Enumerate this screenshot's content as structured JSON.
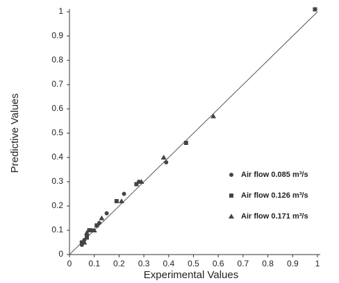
{
  "chart_data": {
    "type": "scatter",
    "x_label": "Experimental Values",
    "y_label": "Predictive Values",
    "xlim": [
      0,
      1
    ],
    "ylim": [
      0,
      1
    ],
    "xticks": [
      0,
      0.1,
      0.2,
      0.3,
      0.4,
      0.5,
      0.6,
      0.7,
      0.8,
      0.9,
      1
    ],
    "yticks": [
      0,
      0.1,
      0.2,
      0.3,
      0.4,
      0.5,
      0.6,
      0.7,
      0.8,
      0.9,
      1
    ],
    "reference_line": true,
    "series": [
      {
        "name": "Air flow 0.085 m³/s",
        "color": "#444444",
        "marker": "circle",
        "x": [
          0.05,
          0.06,
          0.07,
          0.09,
          0.12,
          0.15,
          0.22,
          0.28,
          0.39
        ],
        "values": [
          0.04,
          0.06,
          0.08,
          0.1,
          0.13,
          0.17,
          0.25,
          0.3,
          0.38
        ]
      },
      {
        "name": "Air flow 0.126 m³/s",
        "color": "#444444",
        "marker": "square",
        "x": [
          0.05,
          0.07,
          0.08,
          0.11,
          0.19,
          0.27,
          0.47,
          0.99
        ],
        "values": [
          0.05,
          0.07,
          0.1,
          0.12,
          0.22,
          0.29,
          0.46,
          1.01
        ]
      },
      {
        "name": "Air flow 0.171 m³/s",
        "color": "#444444",
        "marker": "triangle",
        "x": [
          0.06,
          0.07,
          0.1,
          0.13,
          0.21,
          0.29,
          0.38,
          0.58
        ],
        "values": [
          0.05,
          0.09,
          0.1,
          0.15,
          0.22,
          0.3,
          0.4,
          0.57
        ]
      }
    ]
  }
}
